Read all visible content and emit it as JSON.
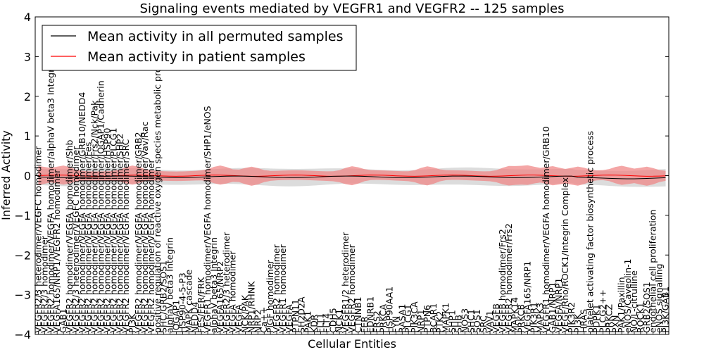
{
  "chart_data": {
    "type": "line",
    "title": "Signaling events mediated by VEGFR1 and VEGFR2 -- 125 samples",
    "xlabel": "Cellular Entities",
    "ylabel": "Inferred Activity",
    "ylim": [
      -4,
      4
    ],
    "yticks": [
      -4,
      -3,
      -2,
      -1,
      0,
      1,
      2,
      3,
      4
    ],
    "legend": {
      "position": "top-left",
      "entries": [
        {
          "name": "Mean activity in all permuted samples",
          "color": "#000000"
        },
        {
          "name": "Mean activity in patient samples",
          "color": "#ff0000"
        }
      ]
    },
    "colors": {
      "permuted_line": "#000000",
      "patient_line": "#ff0000",
      "permuted_band": "#d0d0d0",
      "patient_band": "#f08080"
    },
    "categories": [
      "VEGFR2/3 heterodimer/VEGFC homodimer",
      "VEGFR2/3 homodimer",
      "VEGFR2 homodimer/VEGFA homodimer/alphaV beta3 Integrin",
      "VEGFA165/NRP1/VEGFR2 homodimer",
      "GAB1",
      "VEGFR2 homodimer/VEGFA homodimer/Shb",
      "VEGFR2/3 heterodimer/VEGFC homodimer",
      "VEGFR2 homodimer/VEGFA homodimer/GRB10/NEDD4",
      "VEGFR2 homodimer/VEGFA homodimer/Fes",
      "VEGFR2 homodimer/VEGFA homodimer/Frs2/Nck/Pak",
      "VEGFR2 homodimer/VEGFA homodimer/IQGAP1/Cadherin",
      "VEGFR2 homodimer/VEGFA homodimer/HSP90",
      "VEGFR2 homodimer/VEGFA homodimer/PLCG1",
      "VEGFR2 homodimer/VEGFA homodimer/SHP2",
      "VEGFR2 homodimer/VEGFA homodimer/SRC",
      "PI3K",
      "VEGFR2 homodimer/VEGFA homodimer/GRB2",
      "VEGFR2 homodimer/VEGFA homodimer/Vav/Rac",
      "VEGFR2 homodimer/VEGFA homodimer",
      "positive regulation of reactive oxygen species metabolic process",
      "SHC/GRB2/SOS1",
      "alphaV beta3 Integrin",
      "IQGAP1",
      "HSP90-4-5-P3",
      "MAPK cascade",
      "NEDD4",
      "FES/FER/FRK",
      "VEGFR1 homodimer/VEGFA homodimer/SHP1/eNOS",
      "alphaV beta3 Integrin",
      "VEGFA165/NRP2",
      "VEGFR2/3 heterodimer",
      "VEGFA homodimer",
      "VEGFA",
      "NCK/PAK",
      "NRP1/RHNK",
      "NRP2",
      "Ca++",
      "PlGF homodimer",
      "VEGFR2 homodimer",
      "VEGFR1 homodimer",
      "VEGFA",
      "PTPN11",
      "SH2D2A",
      "PAK1",
      "KDR",
      "FLT1",
      "FLT4",
      "CDH5",
      "NCK1",
      "VEGFR1/2 heterodimer",
      "VEGFR2 homodimer",
      "CTNNB1",
      "FER",
      "EDNRB1",
      "FRS2",
      "PRKCA",
      "HSP90AA1",
      "FYN",
      "RASA1",
      "PLCG1",
      "PIK3CA",
      "NRP1",
      "PTPN6",
      "BCAR1",
      "PTK2",
      "MAPK1",
      "SHP1",
      "SHB",
      "NOS3",
      "SHC1",
      "SOS1",
      "SRC",
      "VAV1",
      "VEGFB",
      "VEGFB homodimer/Frs2",
      "VEGFR2 homodimer/Frs2",
      "MAPK14",
      "PRKCB",
      "VEGFA165/NRP1",
      "PIK3R1",
      "MAPK3",
      "VEGFR1 homodimer/VEGFA homodimer/GRB10",
      "GAB1/NRP1",
      "VEGFA/NRP1",
      "VEGF/Rho/ROCK1/Integrin Complex",
      "PIK3R2",
      "PI3K",
      "HRAS",
      "platelet activating factor biosynthetic process",
      "PDPK1",
      "PLCG2++",
      "PRKCZ",
      "PXN",
      "PAK1/Paxillin",
      "eNOS/Caveolin-1",
      "NO/L-citrulline",
      "ROCK1",
      "GRB2/SOS1",
      "endothelial cell proliferation",
      "eNOS signalling",
      "PI3K/GAB1"
    ]
  }
}
